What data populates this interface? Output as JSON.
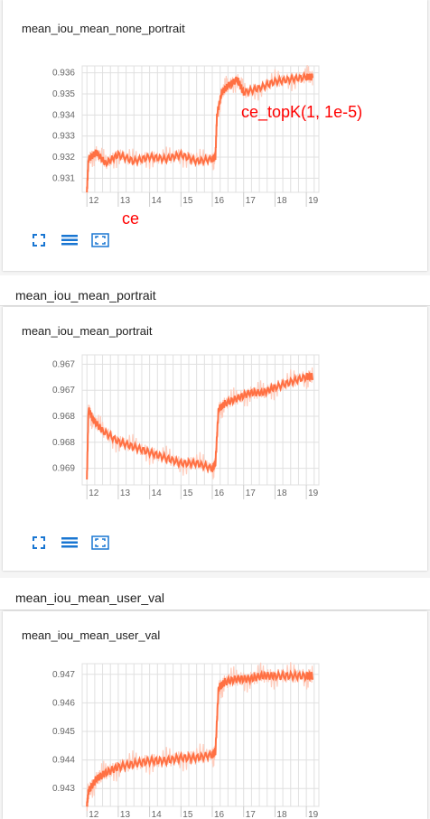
{
  "colors": {
    "line": "#ff7043",
    "line_smooth_bg": "#ffccbc",
    "toolbar_icon": "#1976d2",
    "annotation": "#ff0000"
  },
  "toolbar_icons": [
    "fullscreen-icon",
    "data-table-icon",
    "fit-domain-icon"
  ],
  "annotations": {
    "ce": "ce",
    "ce_topk": "ce_topK(1, 1e-5)"
  },
  "sections": [
    {
      "header": "",
      "card_title": "mean_iou_mean_none_portrait"
    },
    {
      "header": "mean_iou_mean_portrait",
      "card_title": "mean_iou_mean_portrait"
    },
    {
      "header": "mean_iou_mean_user_val",
      "card_title": "mean_iou_mean_user_val"
    }
  ],
  "chart_data": [
    {
      "type": "line",
      "title": "mean_iou_mean_none_portrait",
      "x_ticks": [
        "12",
        "13",
        "14",
        "15",
        "16",
        "17",
        "18",
        "19"
      ],
      "y_ticks": [
        "0.931",
        "0.932",
        "0.933",
        "0.934",
        "0.935",
        "0.936"
      ],
      "xlim": [
        11.85,
        19.4
      ],
      "ylim": [
        0.9305,
        0.9362
      ],
      "series": [
        {
          "x": [
            12.0,
            12.05,
            12.3,
            12.6,
            13.0,
            13.5,
            14.0,
            14.5,
            15.0,
            15.5,
            16.0,
            16.1,
            16.15,
            16.3,
            16.5,
            16.8,
            17.0,
            17.5,
            18.0,
            18.5,
            19.0,
            19.2
          ],
          "y": [
            0.9305,
            0.932,
            0.9323,
            0.9318,
            0.9322,
            0.9319,
            0.9321,
            0.932,
            0.9322,
            0.9319,
            0.932,
            0.9321,
            0.934,
            0.935,
            0.9353,
            0.9356,
            0.935,
            0.9352,
            0.9355,
            0.9356,
            0.9357,
            0.9357
          ]
        }
      ]
    },
    {
      "type": "line",
      "title": "mean_iou_mean_portrait",
      "x_ticks": [
        "12",
        "13",
        "14",
        "15",
        "16",
        "17",
        "18",
        "19"
      ],
      "y_ticks": [
        "0.969",
        "0.968",
        "0.968",
        "0.967",
        "0.967"
      ],
      "xlim": [
        11.85,
        19.4
      ],
      "ylim": [
        0.9666,
        0.969
      ],
      "series": [
        {
          "x": [
            12.0,
            12.05,
            12.2,
            12.5,
            13.0,
            13.5,
            14.0,
            14.5,
            15.0,
            15.5,
            16.0,
            16.1,
            16.2,
            16.4,
            16.8,
            17.2,
            17.6,
            18.0,
            18.5,
            19.0,
            19.2
          ],
          "y": [
            0.9667,
            0.968,
            0.9678,
            0.9676,
            0.9674,
            0.9673,
            0.9672,
            0.9671,
            0.967,
            0.967,
            0.9669,
            0.967,
            0.968,
            0.9681,
            0.9682,
            0.9683,
            0.9683,
            0.9684,
            0.9685,
            0.9686,
            0.9686
          ]
        }
      ]
    },
    {
      "type": "line",
      "title": "mean_iou_mean_user_val",
      "x_ticks": [
        "12",
        "13",
        "14",
        "15",
        "16",
        "17",
        "18",
        "19"
      ],
      "y_ticks": [
        "0.943",
        "0.944",
        "0.945",
        "0.946",
        "0.947"
      ],
      "xlim": [
        11.85,
        19.4
      ],
      "ylim": [
        0.9427,
        0.9474
      ],
      "series": [
        {
          "x": [
            12.0,
            12.05,
            12.3,
            12.6,
            13.0,
            13.5,
            14.0,
            14.5,
            15.0,
            15.5,
            16.0,
            16.1,
            16.2,
            16.4,
            16.8,
            17.2,
            17.6,
            18.0,
            18.5,
            19.0,
            19.2
          ],
          "y": [
            0.9427,
            0.9432,
            0.9436,
            0.9438,
            0.944,
            0.9441,
            0.9442,
            0.9442,
            0.9443,
            0.9443,
            0.9444,
            0.9445,
            0.9466,
            0.9468,
            0.9469,
            0.9469,
            0.947,
            0.947,
            0.947,
            0.947,
            0.947
          ]
        }
      ]
    }
  ]
}
